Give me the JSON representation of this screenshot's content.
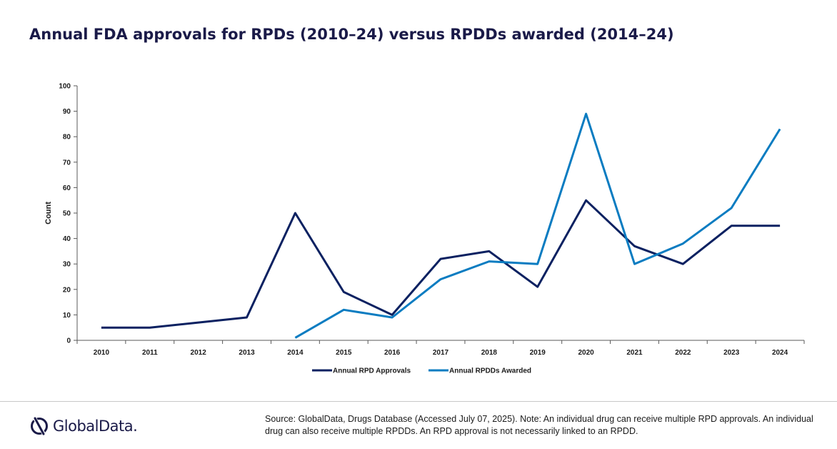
{
  "title": "Annual FDA approvals for RPDs (2010–24) versus RPDDs awarded (2014–24)",
  "source_note": "Source: GlobalData, Drugs Database (Accessed July 07, 2025). Note: An individual drug can receive multiple RPD approvals. An individual drug can also receive multiple RPDDs. An RPD approval is not necessarily linked to an RPDD.",
  "logo": {
    "text": "GlobalData.",
    "icon": "globaldata-logo-icon"
  },
  "chart_data": {
    "type": "line",
    "title": "Annual FDA approvals for RPDs (2010–24) versus RPDDs awarded (2014–24)",
    "xlabel": "",
    "ylabel": "Count",
    "categories": [
      "2010",
      "2011",
      "2012",
      "2013",
      "2014",
      "2015",
      "2016",
      "2017",
      "2018",
      "2019",
      "2020",
      "2021",
      "2022",
      "2023",
      "2024"
    ],
    "ylim": [
      0,
      100
    ],
    "yticks": [
      "0",
      "10",
      "20",
      "30",
      "40",
      "50",
      "60",
      "70",
      "80",
      "90",
      "100"
    ],
    "grid": false,
    "legend_position": "bottom",
    "series": [
      {
        "name": "Annual RPD Approvals",
        "color": "#0b2161",
        "values": [
          5,
          5,
          7,
          9,
          50,
          19,
          10,
          32,
          35,
          21,
          55,
          37,
          30,
          45,
          45
        ]
      },
      {
        "name": "Annual RPDDs Awarded",
        "color": "#0a7cc1",
        "values": [
          null,
          null,
          null,
          null,
          1,
          12,
          9,
          24,
          31,
          30,
          89,
          30,
          38,
          52,
          83
        ]
      }
    ]
  }
}
